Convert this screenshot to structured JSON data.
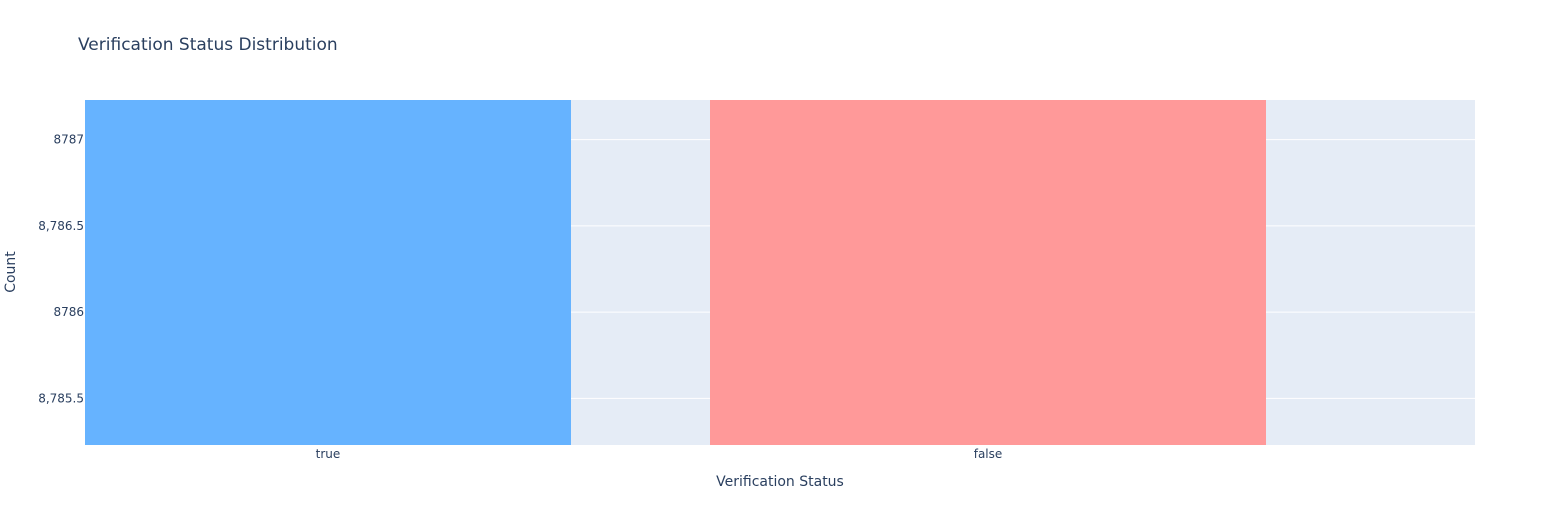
{
  "chart_data": {
    "type": "bar",
    "title": "Verification Status Distribution",
    "xlabel": "Verification Status",
    "ylabel": "Count",
    "categories": [
      "true",
      "false"
    ],
    "values": [
      8787.3,
      8787.3
    ],
    "colors": [
      "#66b3ff",
      "#ff9999"
    ],
    "ylim": [
      8785.23,
      8787.23
    ],
    "yticks": [
      {
        "value": 8785.5,
        "label": "8,785.5"
      },
      {
        "value": 8786,
        "label": "8786"
      },
      {
        "value": 8786.5,
        "label": "8,786.5"
      },
      {
        "value": 8787,
        "label": "8787"
      }
    ],
    "grid": true,
    "plot_background": "#e5ecf6",
    "grid_color": "#ffffff",
    "text_color": "#2a3f5f"
  }
}
